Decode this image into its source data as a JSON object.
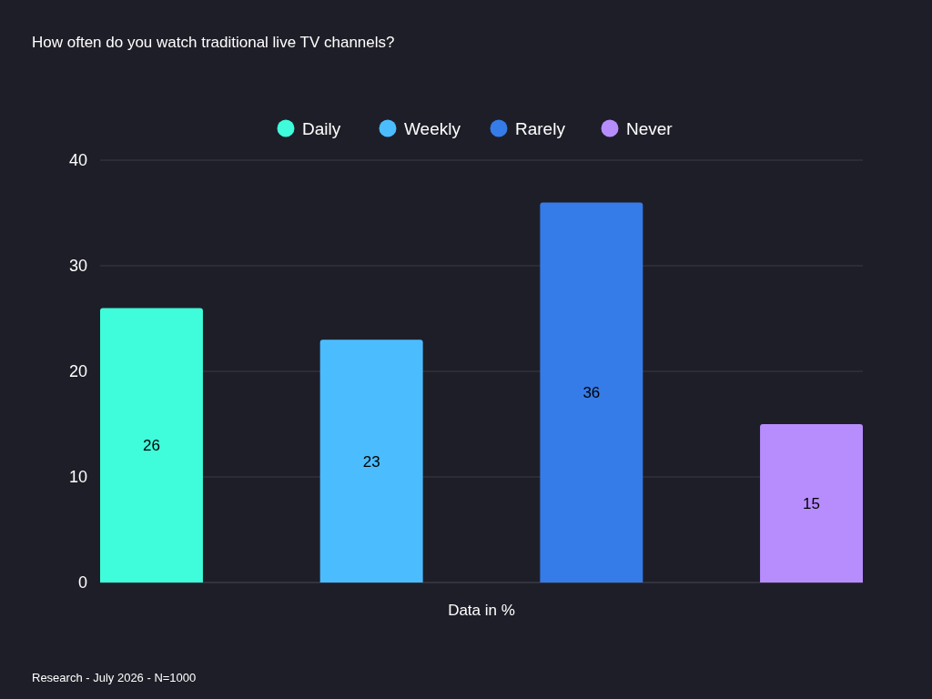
{
  "chart_data": {
    "type": "bar",
    "title": "How often do you watch traditional live TV channels?",
    "categories": [
      "Data in %"
    ],
    "series": [
      {
        "name": "Daily",
        "color": "#3ffddb",
        "values": [
          26
        ]
      },
      {
        "name": "Weekly",
        "color": "#4bbdff",
        "values": [
          23
        ]
      },
      {
        "name": "Rarely",
        "color": "#357ce8",
        "values": [
          36
        ]
      },
      {
        "name": "Never",
        "color": "#b78dfd",
        "values": [
          15
        ]
      }
    ],
    "ylim": [
      0,
      40
    ],
    "yticks": [
      0,
      10,
      20,
      30,
      40
    ],
    "grid": "y",
    "legend": "top",
    "data_labels": true,
    "annotations": [
      "Research - July 2026 - N=1000"
    ]
  }
}
